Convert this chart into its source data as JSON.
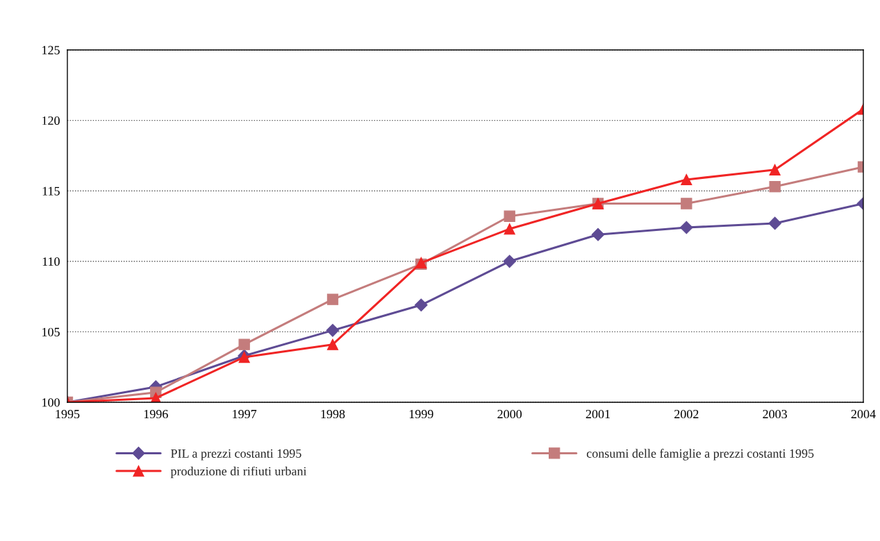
{
  "chart_data": {
    "type": "line",
    "categories": [
      "1995",
      "1996",
      "1997",
      "1998",
      "1999",
      "2000",
      "2001",
      "2002",
      "2003",
      "2004"
    ],
    "ylim": [
      100,
      125
    ],
    "yticks": [
      100,
      105,
      110,
      115,
      120,
      125
    ],
    "grid": "y",
    "legend": "bottom",
    "series": [
      {
        "name": "PIL a prezzi costanti 1995",
        "color": "#5e4b94",
        "marker": "diamond",
        "values": [
          100,
          101.1,
          103.3,
          105.1,
          106.9,
          110.0,
          111.9,
          112.4,
          112.7,
          114.1
        ]
      },
      {
        "name": "consumi delle famiglie a prezzi costanti 1995",
        "color": "#c47c7c",
        "marker": "square",
        "values": [
          100,
          100.7,
          104.1,
          107.3,
          109.8,
          113.2,
          114.1,
          114.1,
          115.3,
          116.7
        ]
      },
      {
        "name": "produzione di rifiuti urbani",
        "color": "#f02424",
        "marker": "triangle",
        "values": [
          100,
          100.3,
          103.2,
          104.1,
          109.9,
          112.3,
          114.1,
          115.8,
          116.5,
          120.8
        ]
      }
    ]
  }
}
